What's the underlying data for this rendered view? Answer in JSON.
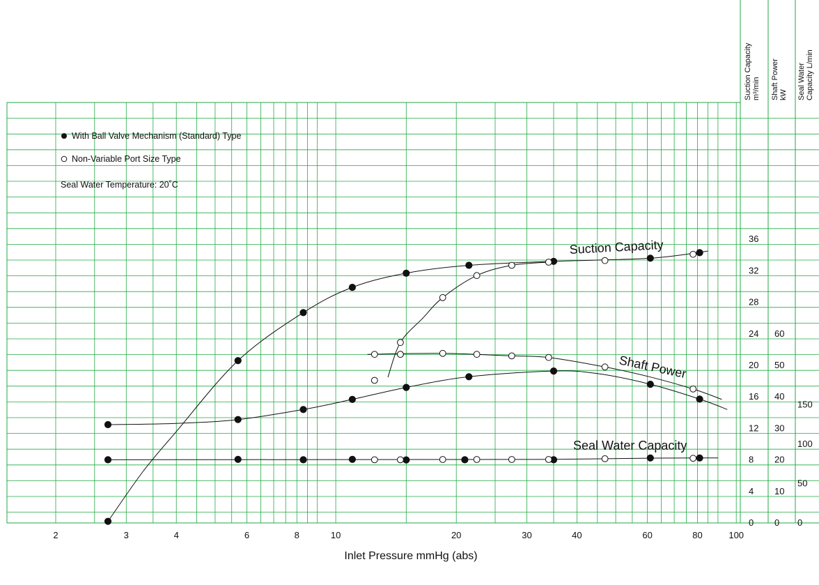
{
  "chart_data": {
    "type": "scatter",
    "title": "",
    "xlabel": "Inlet Pressure mmHg (abs)",
    "x_scale": "log",
    "xlim": [
      1.5,
      100
    ],
    "x_ticks": [
      "2",
      "3",
      "4",
      "6",
      "8",
      "10",
      "20",
      "30",
      "40",
      "60",
      "80",
      "100"
    ],
    "grid": true,
    "grid_color": "#22aa44",
    "axes": [
      {
        "header": [
          "Suction Capacity",
          "m³/min"
        ],
        "range": [
          0,
          40
        ],
        "ticks": [
          "0",
          "4",
          "8",
          "12",
          "16",
          "20",
          "24",
          "28",
          "32",
          "36"
        ]
      },
      {
        "header": [
          "Shaft Power",
          "kW"
        ],
        "range": [
          0,
          100
        ],
        "ticks": [
          "0",
          "10",
          "20",
          "30",
          "40",
          "50",
          "60"
        ]
      },
      {
        "header": [
          "Seal Water",
          "Capacity  L/min"
        ],
        "range": [
          0,
          400
        ],
        "ticks": [
          "0",
          "50",
          "100",
          "150"
        ]
      }
    ],
    "legend": {
      "placement": "top-left",
      "items": [
        {
          "marker": "filled-circle",
          "label": "With Ball Valve Mechanism (Standard) Type"
        },
        {
          "marker": "open-circle",
          "label": "Non-Variable Port Size Type"
        }
      ],
      "note": "Seal Water Temperature: 20˚C"
    },
    "curve_labels": [
      "Suction Capacity",
      "Shaft Power",
      "Seal Water Capacity"
    ],
    "series": [
      {
        "curve": "Suction Capacity",
        "marker": "filled",
        "axis": 0,
        "x": [
          2.7,
          5.7,
          8.3,
          11,
          15,
          21.5,
          35,
          61,
          81
        ],
        "y": [
          0.2,
          20.6,
          26.7,
          29.9,
          31.7,
          32.7,
          33.2,
          33.6,
          34.3
        ]
      },
      {
        "curve": "Suction Capacity",
        "marker": "open",
        "axis": 0,
        "x": [
          12.5,
          14.5,
          18.5,
          22.5,
          27.5,
          34,
          47,
          78
        ],
        "y": [
          18.1,
          22.9,
          28.6,
          31.4,
          32.7,
          33.1,
          33.3,
          34.1
        ]
      },
      {
        "curve": "Shaft Power",
        "marker": "filled",
        "axis": 1,
        "x": [
          2.7,
          5.7,
          8.3,
          11,
          15,
          21.5,
          35,
          61,
          81
        ],
        "y": [
          31.2,
          32.8,
          36.0,
          39.2,
          43.0,
          46.4,
          48.2,
          44.0,
          39.3
        ]
      },
      {
        "curve": "Shaft Power",
        "marker": "open",
        "axis": 1,
        "x": [
          12.5,
          14.5,
          14.5,
          18.5,
          22.5,
          27.5,
          34,
          47,
          78
        ],
        "y": [
          53.5,
          53.5,
          53.5,
          53.8,
          53.5,
          53.0,
          52.5,
          49.5,
          42.5
        ]
      },
      {
        "curve": "Seal Water Capacity",
        "marker": "filled",
        "axis": 2,
        "x": [
          2.7,
          5.7,
          8.3,
          11,
          15,
          21,
          35,
          61,
          81
        ],
        "y": [
          80.2,
          80.7,
          80.2,
          80.7,
          80.0,
          80.2,
          80.2,
          82.5,
          82.5
        ]
      },
      {
        "curve": "Seal Water Capacity",
        "marker": "open",
        "axis": 2,
        "x": [
          12.5,
          14.5,
          18.5,
          22.5,
          27.5,
          34,
          47,
          78
        ],
        "y": [
          80.2,
          80.2,
          80.5,
          80.5,
          80.5,
          80.5,
          81.5,
          82.0
        ]
      }
    ]
  }
}
